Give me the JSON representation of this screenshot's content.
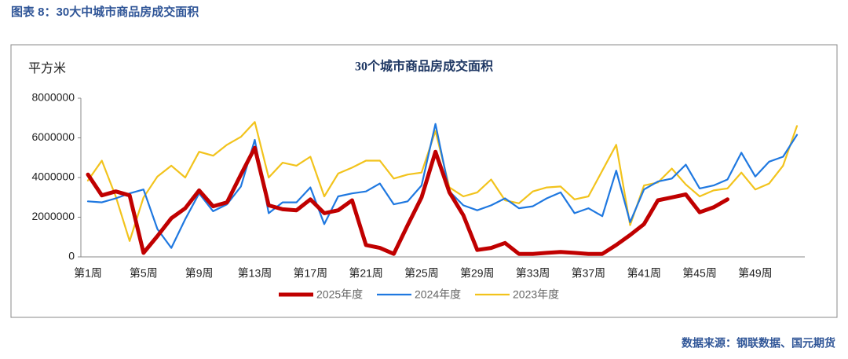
{
  "header": {
    "title": "图表 8：30大中城市商品房成交面积"
  },
  "chart_data": {
    "type": "line",
    "title": "30个城市商品房成交面积",
    "y_label": "平方米",
    "categories": [
      "第1周",
      null,
      null,
      null,
      "第5周",
      null,
      null,
      null,
      "第9周",
      null,
      null,
      null,
      "第13周",
      null,
      null,
      null,
      "第17周",
      null,
      null,
      null,
      "第21周",
      null,
      null,
      null,
      "第25周",
      null,
      null,
      null,
      "第29周",
      null,
      null,
      null,
      "第33周",
      null,
      null,
      null,
      "第37周",
      null,
      null,
      null,
      "第41周",
      null,
      null,
      null,
      "第45周",
      null,
      null,
      null,
      "第49周",
      null,
      null,
      null
    ],
    "ylim": [
      0,
      8000000
    ],
    "yticks": [
      0,
      2000000,
      4000000,
      6000000,
      8000000
    ],
    "grid": false,
    "legend": "bottom",
    "series": [
      {
        "name": "2025年度",
        "color": "#c00000",
        "width": 5,
        "values": [
          4150000,
          3100000,
          3300000,
          3100000,
          200000,
          1050000,
          1950000,
          2450000,
          3350000,
          2550000,
          2750000,
          4150000,
          5500000,
          2600000,
          2400000,
          2350000,
          2900000,
          2200000,
          2350000,
          2850000,
          600000,
          450000,
          150000,
          1600000,
          3000000,
          5300000,
          3250000,
          2100000,
          350000,
          450000,
          700000,
          150000,
          150000,
          200000,
          250000,
          200000,
          150000,
          150000,
          600000,
          1100000,
          1650000,
          2850000,
          3000000,
          3150000,
          2250000,
          2500000,
          2900000,
          null,
          null,
          null,
          null,
          null
        ]
      },
      {
        "name": "2024年度",
        "color": "#1f78e0",
        "width": 2.2,
        "values": [
          2800000,
          2750000,
          2950000,
          3200000,
          3400000,
          1400000,
          450000,
          1900000,
          3200000,
          2300000,
          2650000,
          3550000,
          5900000,
          2200000,
          2750000,
          2750000,
          3500000,
          1650000,
          3050000,
          3200000,
          3300000,
          3700000,
          2650000,
          2800000,
          3600000,
          6700000,
          3300000,
          2600000,
          2350000,
          2600000,
          2950000,
          2450000,
          2550000,
          2950000,
          3250000,
          2200000,
          2450000,
          2050000,
          4350000,
          1750000,
          3400000,
          3800000,
          3950000,
          4650000,
          3450000,
          3600000,
          3900000,
          5250000,
          4050000,
          4800000,
          5050000,
          6150000
        ]
      },
      {
        "name": "2023年度",
        "color": "#f2c31c",
        "width": 2.2,
        "values": [
          3850000,
          4850000,
          3050000,
          800000,
          3000000,
          4050000,
          4600000,
          4000000,
          5300000,
          5100000,
          5650000,
          6050000,
          6800000,
          4000000,
          4750000,
          4600000,
          5050000,
          3050000,
          4200000,
          4500000,
          4850000,
          4850000,
          3950000,
          4150000,
          4250000,
          6350000,
          3500000,
          3050000,
          3250000,
          3900000,
          2850000,
          2700000,
          3300000,
          3500000,
          3550000,
          2900000,
          3050000,
          4350000,
          5650000,
          1600000,
          3600000,
          3750000,
          4450000,
          3650000,
          3050000,
          3350000,
          3450000,
          4250000,
          3400000,
          3700000,
          4600000,
          6600000
        ]
      }
    ]
  },
  "source": "数据来源：钢联数据、国元期货"
}
